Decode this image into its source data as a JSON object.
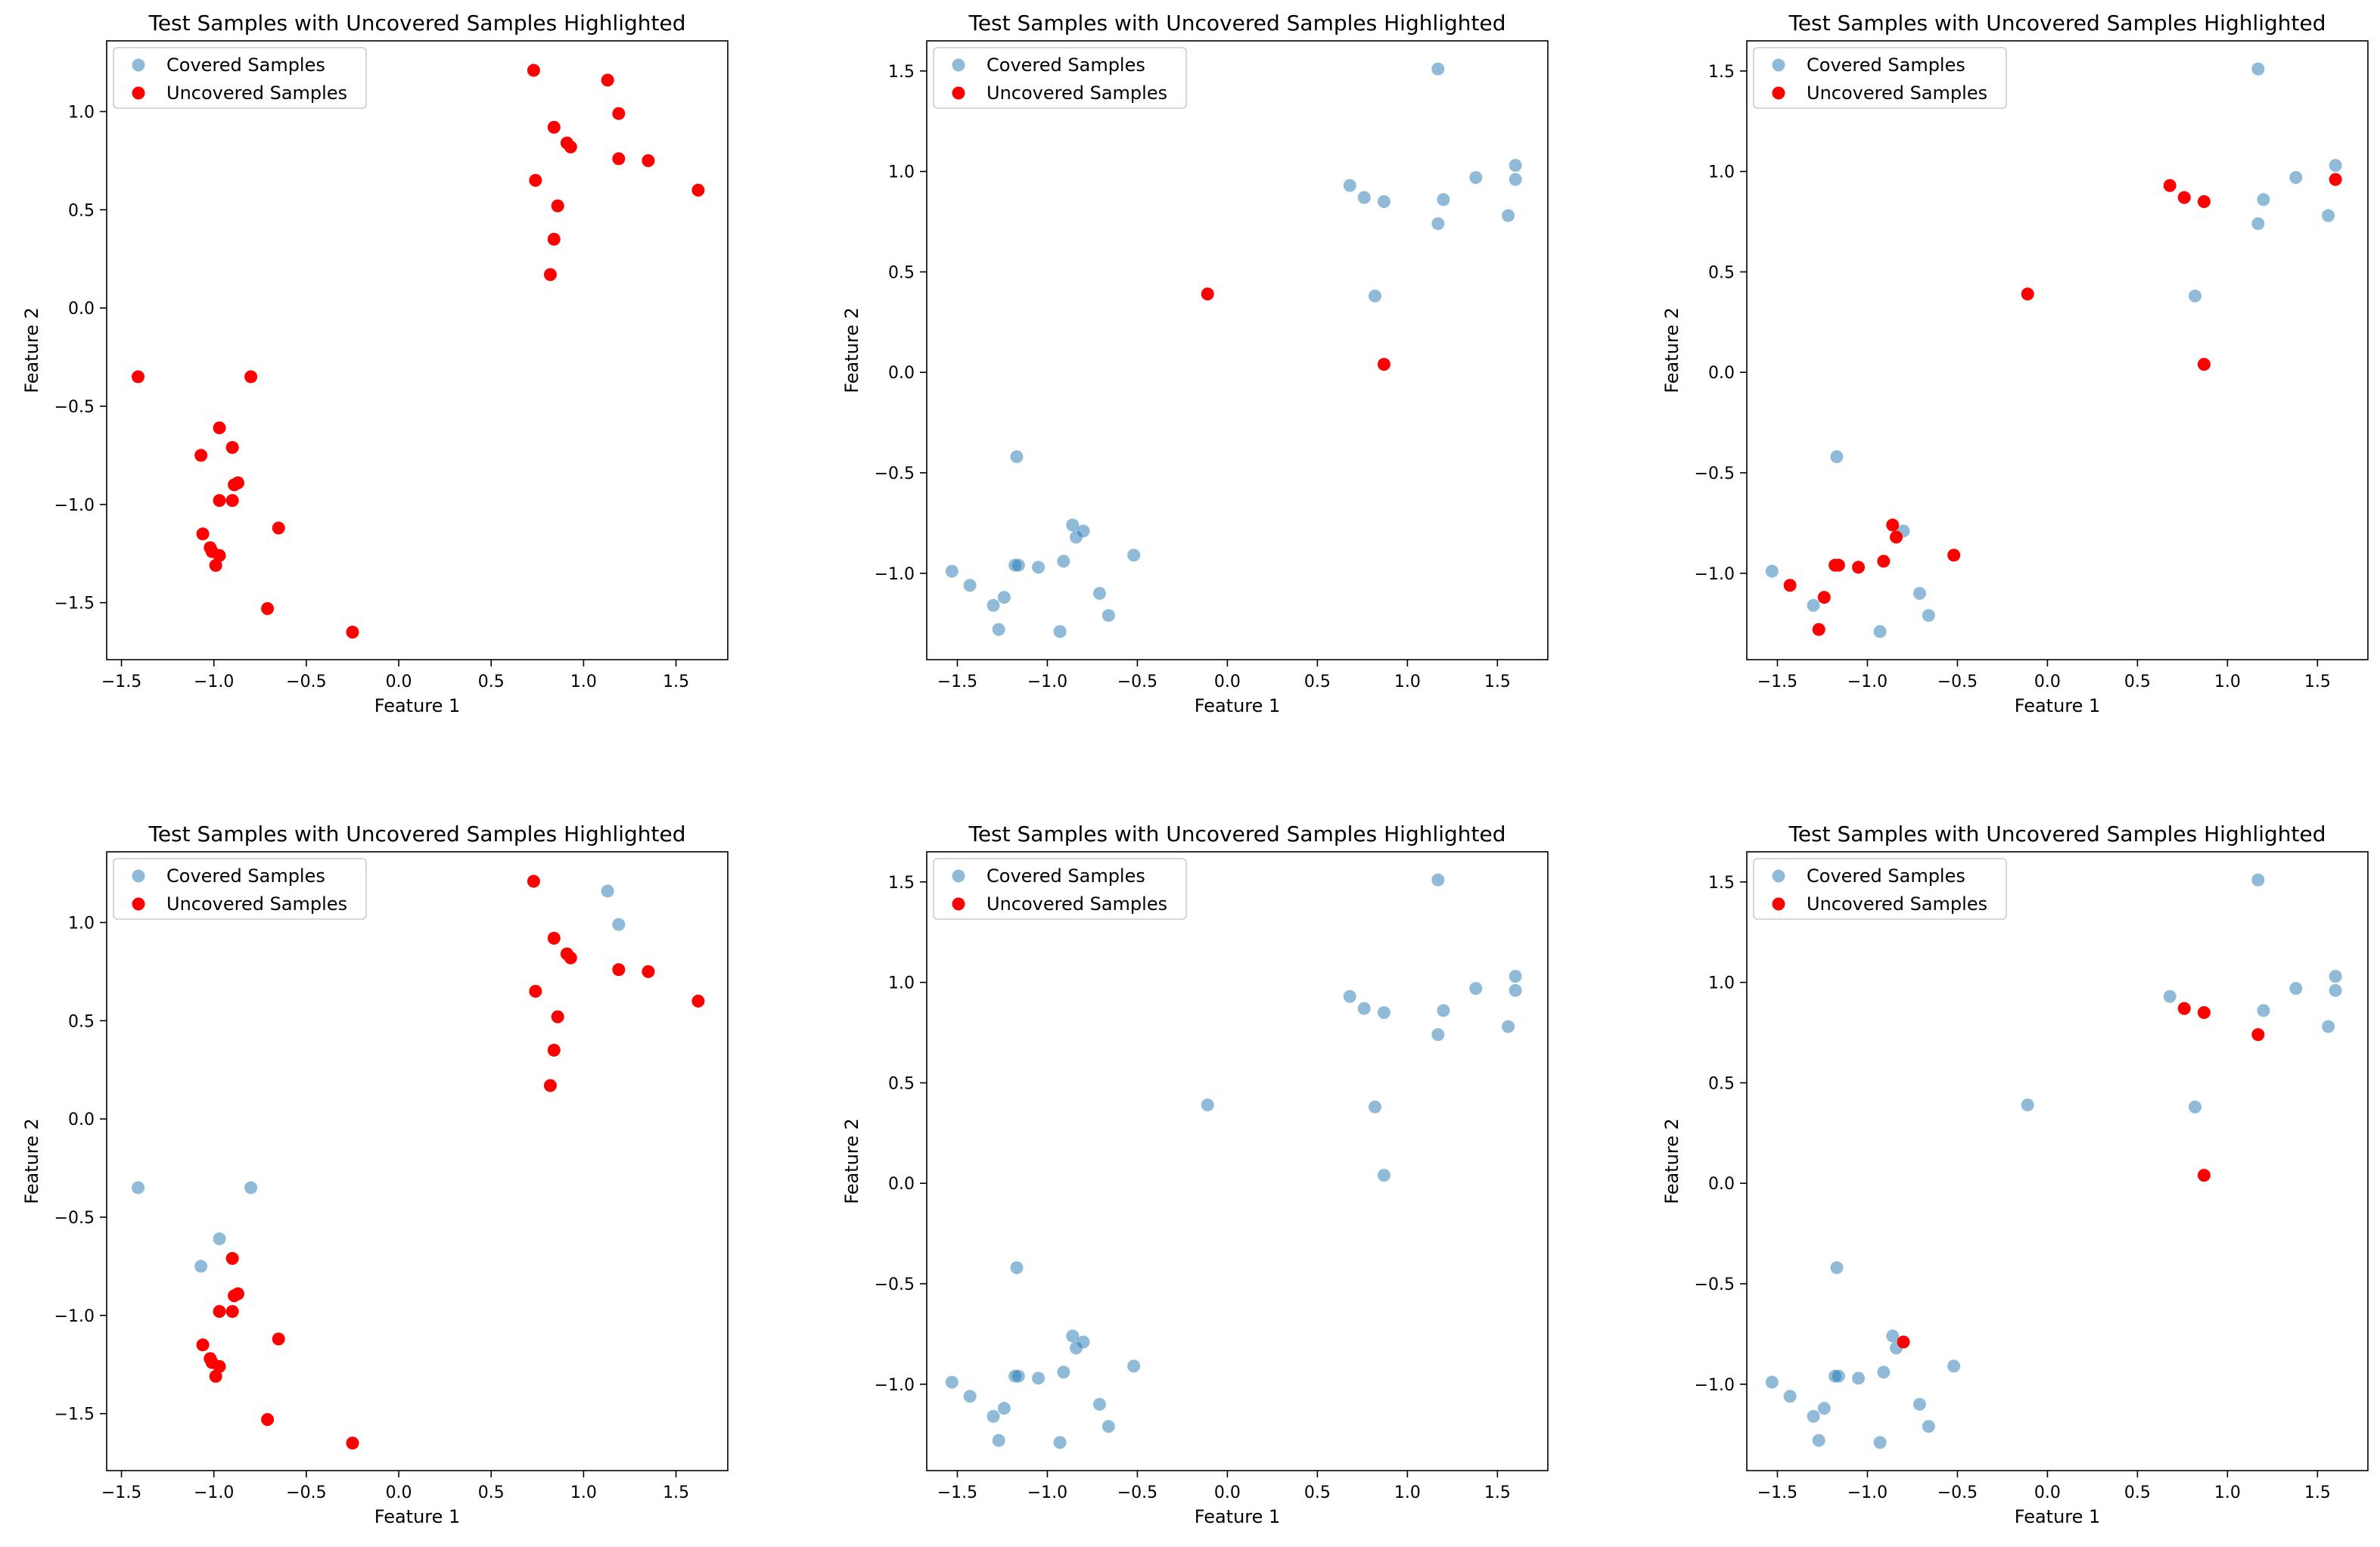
{
  "figure": {
    "background": "#ffffff"
  },
  "colors": {
    "covered": "#1f77b4",
    "covered_alpha": 0.5,
    "uncovered": "#ff0000"
  },
  "chart_data": [
    {
      "type": "scatter",
      "title": "Test Samples with Uncovered Samples Highlighted",
      "xlabel": "Feature 1",
      "ylabel": "Feature 2",
      "xlim": [
        -1.58,
        1.78
      ],
      "ylim": [
        -1.79,
        1.36
      ],
      "xticks": [
        -1.5,
        -1.0,
        -0.5,
        0.0,
        0.5,
        1.0,
        1.5
      ],
      "xtick_labels": [
        "−1.5",
        "−1.0",
        "−0.5",
        "0.0",
        "0.5",
        "1.0",
        "1.5"
      ],
      "yticks": [
        -1.5,
        -1.0,
        -0.5,
        0.0,
        0.5,
        1.0
      ],
      "ytick_labels": [
        "−1.5",
        "−1.0",
        "−0.5",
        "0.0",
        "0.5",
        "1.0"
      ],
      "legend_position": "upper-left",
      "series": [
        {
          "name": "Covered Samples",
          "points": []
        },
        {
          "name": "Uncovered Samples",
          "points": [
            [
              0.73,
              1.21
            ],
            [
              1.13,
              1.16
            ],
            [
              1.19,
              0.99
            ],
            [
              0.84,
              0.92
            ],
            [
              0.91,
              0.84
            ],
            [
              0.93,
              0.82
            ],
            [
              1.19,
              0.76
            ],
            [
              1.35,
              0.75
            ],
            [
              0.74,
              0.65
            ],
            [
              1.62,
              0.6
            ],
            [
              0.86,
              0.52
            ],
            [
              0.84,
              0.35
            ],
            [
              0.82,
              0.17
            ],
            [
              -1.41,
              -0.35
            ],
            [
              -0.8,
              -0.35
            ],
            [
              -0.97,
              -0.61
            ],
            [
              -0.9,
              -0.71
            ],
            [
              -1.07,
              -0.75
            ],
            [
              -0.87,
              -0.89
            ],
            [
              -0.89,
              -0.9
            ],
            [
              -0.97,
              -0.98
            ],
            [
              -0.9,
              -0.98
            ],
            [
              -1.06,
              -1.15
            ],
            [
              -1.02,
              -1.22
            ],
            [
              -1.01,
              -1.24
            ],
            [
              -0.97,
              -1.26
            ],
            [
              -0.99,
              -1.31
            ],
            [
              -0.65,
              -1.12
            ],
            [
              -0.71,
              -1.53
            ],
            [
              -0.25,
              -1.65
            ]
          ]
        }
      ]
    },
    {
      "type": "scatter",
      "title": "Test Samples with Uncovered Samples Highlighted",
      "xlabel": "Feature 1",
      "ylabel": "Feature 2",
      "xlim": [
        -1.67,
        1.78
      ],
      "ylim": [
        -1.43,
        1.65
      ],
      "xticks": [
        -1.5,
        -1.0,
        -0.5,
        0.0,
        0.5,
        1.0,
        1.5
      ],
      "xtick_labels": [
        "−1.5",
        "−1.0",
        "−0.5",
        "0.0",
        "0.5",
        "1.0",
        "1.5"
      ],
      "yticks": [
        -1.0,
        -0.5,
        0.0,
        0.5,
        1.0,
        1.5
      ],
      "ytick_labels": [
        "−1.0",
        "−0.5",
        "0.0",
        "0.5",
        "1.0",
        "1.5"
      ],
      "legend_position": "upper-left",
      "series": [
        {
          "name": "Covered Samples",
          "points": [
            [
              1.17,
              1.51
            ],
            [
              1.6,
              1.03
            ],
            [
              1.6,
              0.96
            ],
            [
              1.38,
              0.97
            ],
            [
              0.68,
              0.93
            ],
            [
              0.76,
              0.87
            ],
            [
              0.87,
              0.85
            ],
            [
              1.2,
              0.86
            ],
            [
              1.17,
              0.74
            ],
            [
              1.56,
              0.78
            ],
            [
              0.82,
              0.38
            ],
            [
              -1.17,
              -0.42
            ],
            [
              -0.86,
              -0.76
            ],
            [
              -0.8,
              -0.79
            ],
            [
              -0.84,
              -0.82
            ],
            [
              -0.52,
              -0.91
            ],
            [
              -1.18,
              -0.96
            ],
            [
              -1.16,
              -0.96
            ],
            [
              -1.05,
              -0.97
            ],
            [
              -0.91,
              -0.94
            ],
            [
              -1.53,
              -0.99
            ],
            [
              -1.43,
              -1.06
            ],
            [
              -1.24,
              -1.12
            ],
            [
              -1.3,
              -1.16
            ],
            [
              -0.71,
              -1.1
            ],
            [
              -0.66,
              -1.21
            ],
            [
              -1.27,
              -1.28
            ],
            [
              -0.93,
              -1.29
            ]
          ]
        },
        {
          "name": "Uncovered Samples",
          "points": [
            [
              -0.11,
              0.39
            ],
            [
              0.87,
              0.04
            ]
          ]
        }
      ]
    },
    {
      "type": "scatter",
      "title": "Test Samples with Uncovered Samples Highlighted",
      "xlabel": "Feature 1",
      "ylabel": "Feature 2",
      "xlim": [
        -1.67,
        1.78
      ],
      "ylim": [
        -1.43,
        1.65
      ],
      "xticks": [
        -1.5,
        -1.0,
        -0.5,
        0.0,
        0.5,
        1.0,
        1.5
      ],
      "xtick_labels": [
        "−1.5",
        "−1.0",
        "−0.5",
        "0.0",
        "0.5",
        "1.0",
        "1.5"
      ],
      "yticks": [
        -1.0,
        -0.5,
        0.0,
        0.5,
        1.0,
        1.5
      ],
      "ytick_labels": [
        "−1.0",
        "−0.5",
        "0.0",
        "0.5",
        "1.0",
        "1.5"
      ],
      "legend_position": "upper-left",
      "series": [
        {
          "name": "Covered Samples",
          "points": [
            [
              1.17,
              1.51
            ],
            [
              1.6,
              1.03
            ],
            [
              1.38,
              0.97
            ],
            [
              1.2,
              0.86
            ],
            [
              1.17,
              0.74
            ],
            [
              1.56,
              0.78
            ],
            [
              0.82,
              0.38
            ],
            [
              -1.17,
              -0.42
            ],
            [
              -0.8,
              -0.79
            ],
            [
              -1.53,
              -0.99
            ],
            [
              -1.3,
              -1.16
            ],
            [
              -0.71,
              -1.1
            ],
            [
              -0.66,
              -1.21
            ],
            [
              -0.93,
              -1.29
            ]
          ]
        },
        {
          "name": "Uncovered Samples",
          "points": [
            [
              0.68,
              0.93
            ],
            [
              0.76,
              0.87
            ],
            [
              0.87,
              0.85
            ],
            [
              1.6,
              0.96
            ],
            [
              -0.11,
              0.39
            ],
            [
              0.87,
              0.04
            ],
            [
              -0.86,
              -0.76
            ],
            [
              -0.84,
              -0.82
            ],
            [
              -1.18,
              -0.96
            ],
            [
              -1.16,
              -0.96
            ],
            [
              -1.05,
              -0.97
            ],
            [
              -0.91,
              -0.94
            ],
            [
              -0.52,
              -0.91
            ],
            [
              -1.43,
              -1.06
            ],
            [
              -1.24,
              -1.12
            ],
            [
              -1.27,
              -1.28
            ]
          ]
        }
      ]
    },
    {
      "type": "scatter",
      "title": "Test Samples with Uncovered Samples Highlighted",
      "xlabel": "Feature 1",
      "ylabel": "Feature 2",
      "xlim": [
        -1.58,
        1.78
      ],
      "ylim": [
        -1.79,
        1.36
      ],
      "xticks": [
        -1.5,
        -1.0,
        -0.5,
        0.0,
        0.5,
        1.0,
        1.5
      ],
      "xtick_labels": [
        "−1.5",
        "−1.0",
        "−0.5",
        "0.0",
        "0.5",
        "1.0",
        "1.5"
      ],
      "yticks": [
        -1.5,
        -1.0,
        -0.5,
        0.0,
        0.5,
        1.0
      ],
      "ytick_labels": [
        "−1.5",
        "−1.0",
        "−0.5",
        "0.0",
        "0.5",
        "1.0"
      ],
      "legend_position": "upper-left",
      "series": [
        {
          "name": "Covered Samples",
          "points": [
            [
              1.13,
              1.16
            ],
            [
              1.19,
              0.99
            ],
            [
              -1.41,
              -0.35
            ],
            [
              -0.8,
              -0.35
            ],
            [
              -0.97,
              -0.61
            ],
            [
              -1.07,
              -0.75
            ]
          ]
        },
        {
          "name": "Uncovered Samples",
          "points": [
            [
              0.73,
              1.21
            ],
            [
              0.84,
              0.92
            ],
            [
              0.91,
              0.84
            ],
            [
              0.93,
              0.82
            ],
            [
              1.19,
              0.76
            ],
            [
              1.35,
              0.75
            ],
            [
              0.74,
              0.65
            ],
            [
              1.62,
              0.6
            ],
            [
              0.86,
              0.52
            ],
            [
              0.84,
              0.35
            ],
            [
              0.82,
              0.17
            ],
            [
              -0.9,
              -0.71
            ],
            [
              -0.87,
              -0.89
            ],
            [
              -0.89,
              -0.9
            ],
            [
              -0.97,
              -0.98
            ],
            [
              -0.9,
              -0.98
            ],
            [
              -1.06,
              -1.15
            ],
            [
              -1.02,
              -1.22
            ],
            [
              -1.01,
              -1.24
            ],
            [
              -0.97,
              -1.26
            ],
            [
              -0.99,
              -1.31
            ],
            [
              -0.65,
              -1.12
            ],
            [
              -0.71,
              -1.53
            ],
            [
              -0.25,
              -1.65
            ]
          ]
        }
      ]
    },
    {
      "type": "scatter",
      "title": "Test Samples with Uncovered Samples Highlighted",
      "xlabel": "Feature 1",
      "ylabel": "Feature 2",
      "xlim": [
        -1.67,
        1.78
      ],
      "ylim": [
        -1.43,
        1.65
      ],
      "xticks": [
        -1.5,
        -1.0,
        -0.5,
        0.0,
        0.5,
        1.0,
        1.5
      ],
      "xtick_labels": [
        "−1.5",
        "−1.0",
        "−0.5",
        "0.0",
        "0.5",
        "1.0",
        "1.5"
      ],
      "yticks": [
        -1.0,
        -0.5,
        0.0,
        0.5,
        1.0,
        1.5
      ],
      "ytick_labels": [
        "−1.0",
        "−0.5",
        "0.0",
        "0.5",
        "1.0",
        "1.5"
      ],
      "legend_position": "upper-left",
      "series": [
        {
          "name": "Covered Samples",
          "points": [
            [
              1.17,
              1.51
            ],
            [
              1.6,
              1.03
            ],
            [
              1.6,
              0.96
            ],
            [
              1.38,
              0.97
            ],
            [
              0.68,
              0.93
            ],
            [
              0.76,
              0.87
            ],
            [
              0.87,
              0.85
            ],
            [
              1.2,
              0.86
            ],
            [
              1.17,
              0.74
            ],
            [
              1.56,
              0.78
            ],
            [
              0.82,
              0.38
            ],
            [
              -0.11,
              0.39
            ],
            [
              0.87,
              0.04
            ],
            [
              -1.17,
              -0.42
            ],
            [
              -0.86,
              -0.76
            ],
            [
              -0.8,
              -0.79
            ],
            [
              -0.84,
              -0.82
            ],
            [
              -0.52,
              -0.91
            ],
            [
              -1.18,
              -0.96
            ],
            [
              -1.16,
              -0.96
            ],
            [
              -1.05,
              -0.97
            ],
            [
              -0.91,
              -0.94
            ],
            [
              -1.53,
              -0.99
            ],
            [
              -1.43,
              -1.06
            ],
            [
              -1.24,
              -1.12
            ],
            [
              -1.3,
              -1.16
            ],
            [
              -0.71,
              -1.1
            ],
            [
              -0.66,
              -1.21
            ],
            [
              -1.27,
              -1.28
            ],
            [
              -0.93,
              -1.29
            ]
          ]
        },
        {
          "name": "Uncovered Samples",
          "points": []
        }
      ]
    },
    {
      "type": "scatter",
      "title": "Test Samples with Uncovered Samples Highlighted",
      "xlabel": "Feature 1",
      "ylabel": "Feature 2",
      "xlim": [
        -1.67,
        1.78
      ],
      "ylim": [
        -1.43,
        1.65
      ],
      "xticks": [
        -1.5,
        -1.0,
        -0.5,
        0.0,
        0.5,
        1.0,
        1.5
      ],
      "xtick_labels": [
        "−1.5",
        "−1.0",
        "−0.5",
        "0.0",
        "0.5",
        "1.0",
        "1.5"
      ],
      "yticks": [
        -1.0,
        -0.5,
        0.0,
        0.5,
        1.0,
        1.5
      ],
      "ytick_labels": [
        "−1.0",
        "−0.5",
        "0.0",
        "0.5",
        "1.0",
        "1.5"
      ],
      "legend_position": "upper-left",
      "series": [
        {
          "name": "Covered Samples",
          "points": [
            [
              1.17,
              1.51
            ],
            [
              1.6,
              1.03
            ],
            [
              1.6,
              0.96
            ],
            [
              1.38,
              0.97
            ],
            [
              0.68,
              0.93
            ],
            [
              1.2,
              0.86
            ],
            [
              1.56,
              0.78
            ],
            [
              0.82,
              0.38
            ],
            [
              -0.11,
              0.39
            ],
            [
              -1.17,
              -0.42
            ],
            [
              -0.86,
              -0.76
            ],
            [
              -0.84,
              -0.82
            ],
            [
              -0.52,
              -0.91
            ],
            [
              -1.18,
              -0.96
            ],
            [
              -1.16,
              -0.96
            ],
            [
              -1.05,
              -0.97
            ],
            [
              -0.91,
              -0.94
            ],
            [
              -1.53,
              -0.99
            ],
            [
              -1.43,
              -1.06
            ],
            [
              -1.24,
              -1.12
            ],
            [
              -1.3,
              -1.16
            ],
            [
              -0.71,
              -1.1
            ],
            [
              -0.66,
              -1.21
            ],
            [
              -1.27,
              -1.28
            ],
            [
              -0.93,
              -1.29
            ]
          ]
        },
        {
          "name": "Uncovered Samples",
          "points": [
            [
              0.76,
              0.87
            ],
            [
              0.87,
              0.85
            ],
            [
              1.17,
              0.74
            ],
            [
              0.87,
              0.04
            ],
            [
              -0.8,
              -0.79
            ]
          ]
        }
      ]
    }
  ]
}
